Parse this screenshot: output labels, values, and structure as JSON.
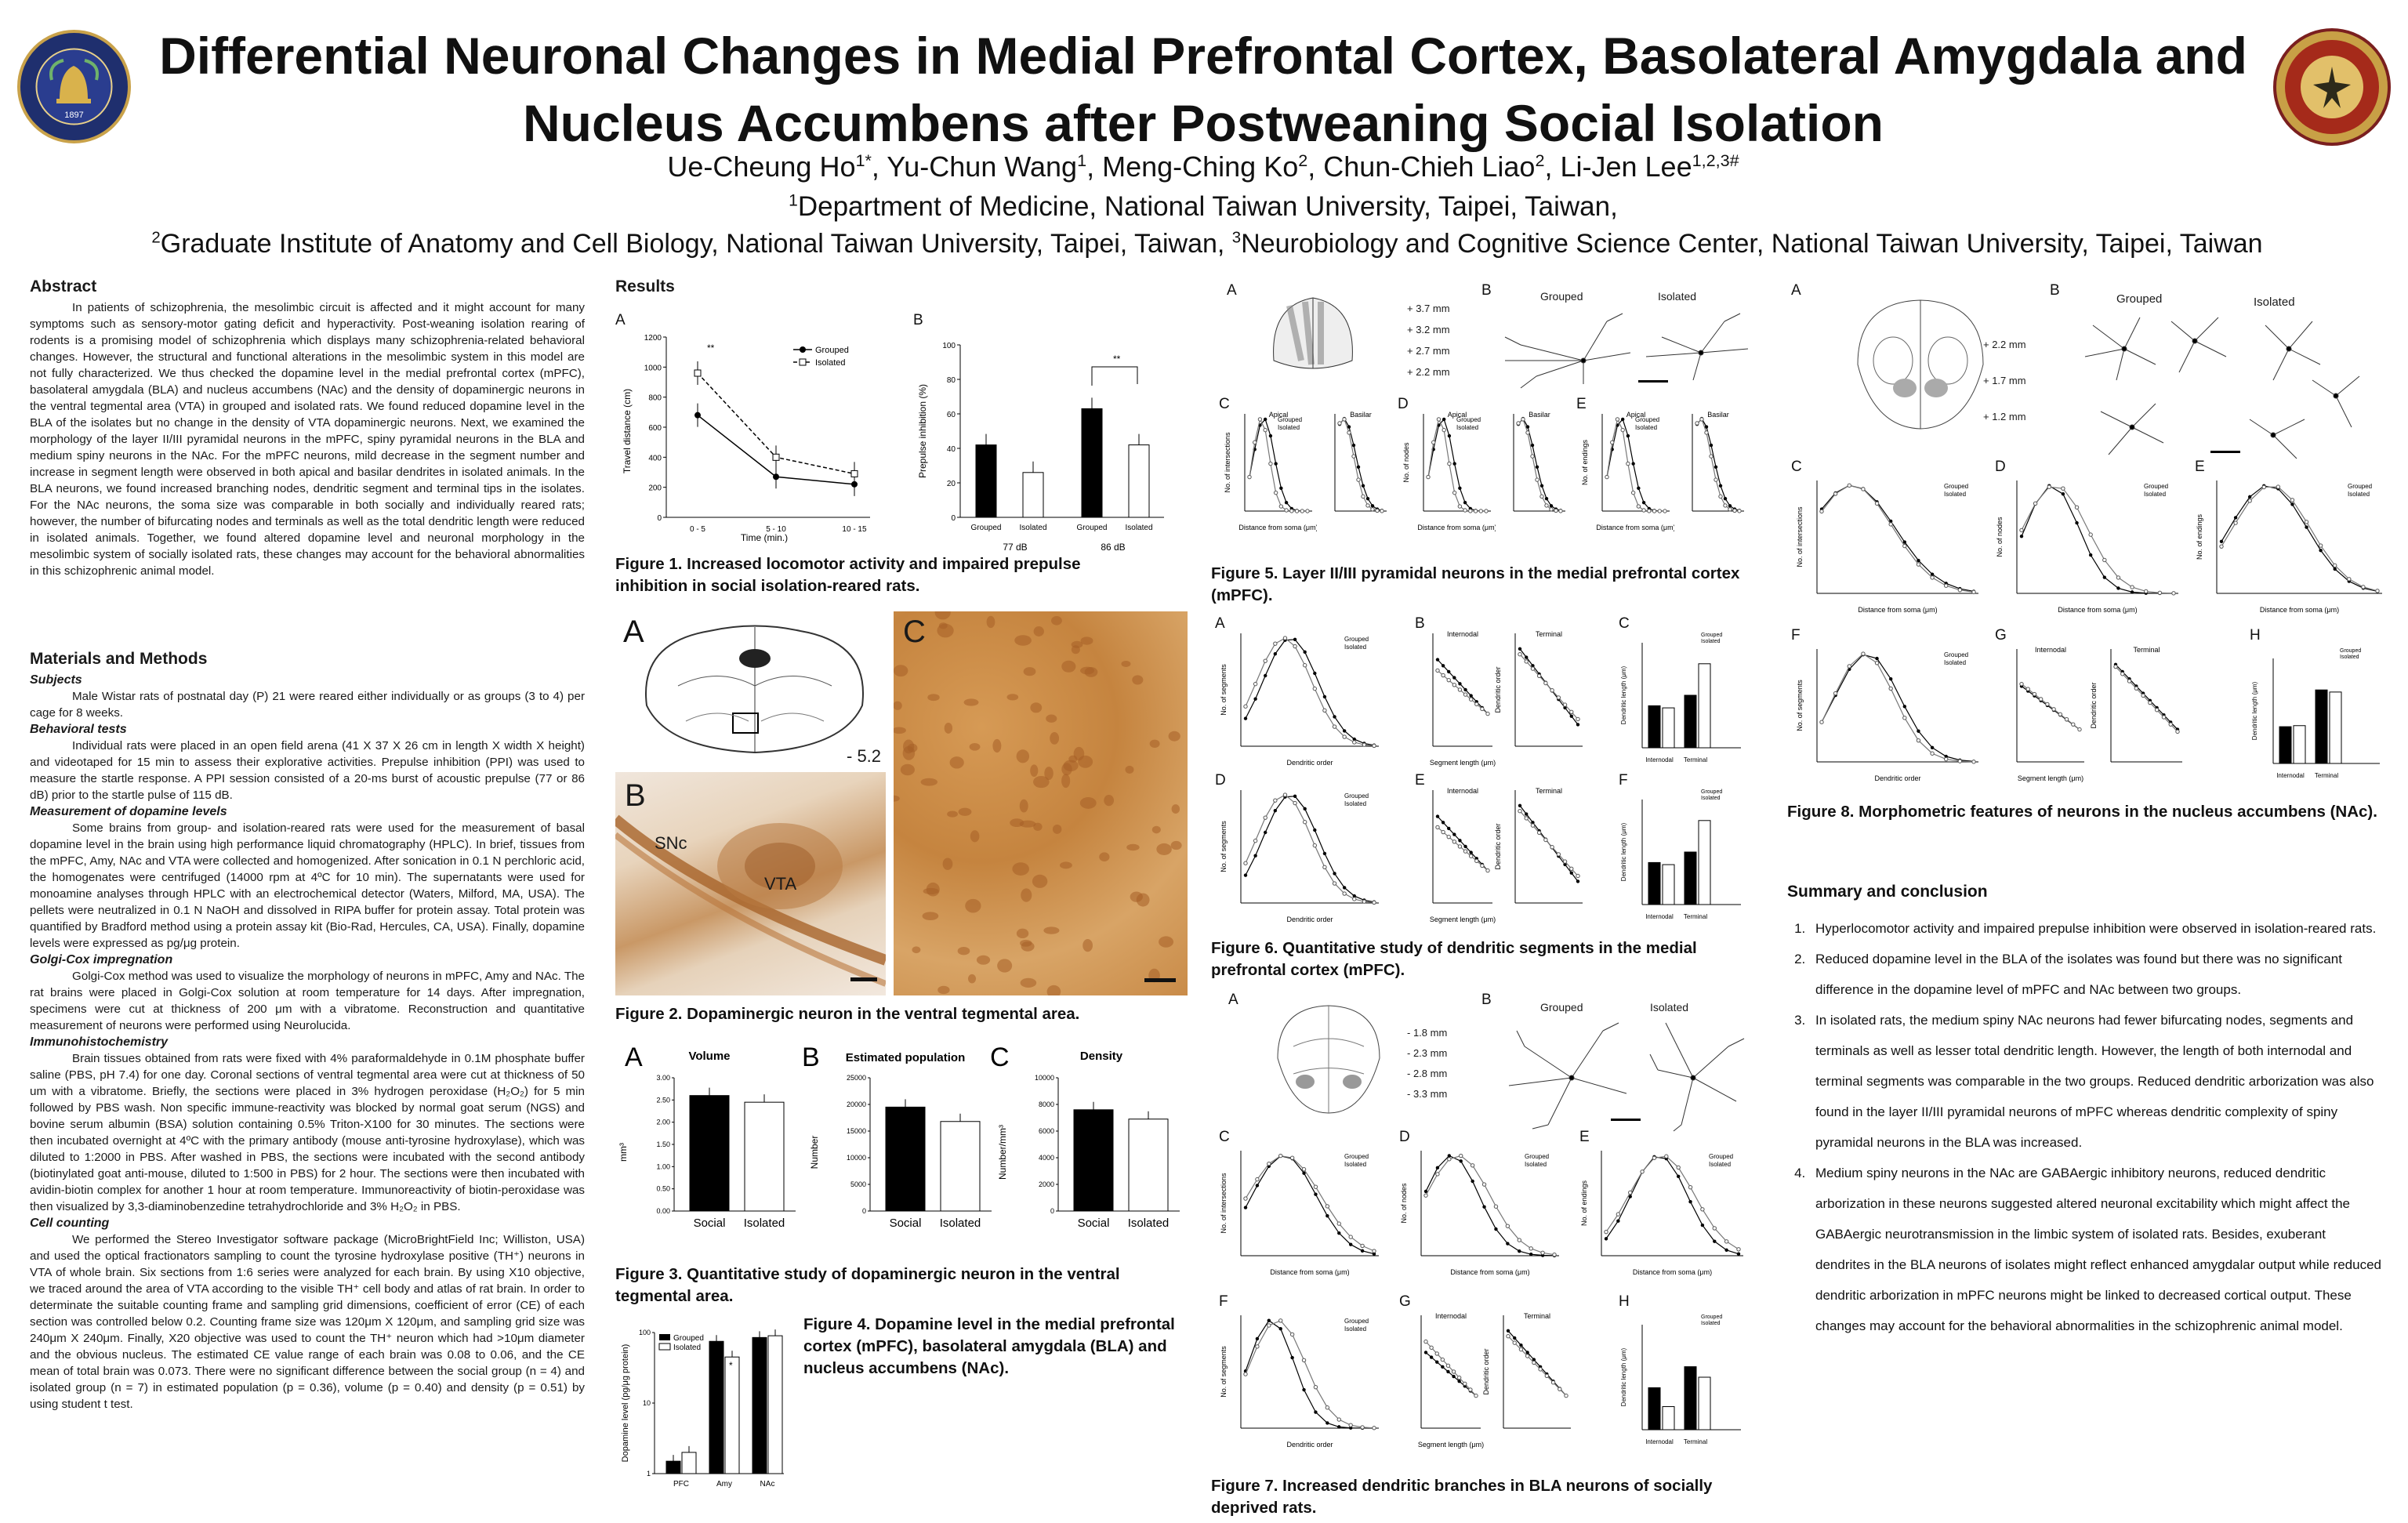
{
  "header": {
    "title_line1": "Differential Neuronal Changes in Medial Prefrontal Cortex, Basolateral Amygdala and",
    "title_line2": "Nucleus Accumbens after Postweaning Social Isolation",
    "authors": [
      {
        "name": "Ue-Cheung Ho",
        "sup": "1*"
      },
      {
        "name": "Yu-Chun Wang",
        "sup": "1"
      },
      {
        "name": "Meng-Ching Ko",
        "sup": "2"
      },
      {
        "name": "Chun-Chieh Liao",
        "sup": "2"
      },
      {
        "name": "Li-Jen Lee",
        "sup": "1,2,3#"
      }
    ],
    "aff1_sup": "1",
    "aff1": "Department of Medicine, National Taiwan University, Taipei, Taiwan,",
    "aff2_sup": "2",
    "aff2": "Graduate Institute of Anatomy and Cell Biology, National Taiwan University, Taipei, Taiwan, ",
    "aff3_sup": "3",
    "aff3": "Neurobiology and Cognitive Science Center, National Taiwan University, Taipei, Taiwan",
    "logo_left_year": "1897",
    "logo_left_text": "NATIONAL TAIWAN UNIVERSITY COLLEGE OF MEDICINE",
    "logo_right_text": "國立臺灣大學"
  },
  "abstract": {
    "heading": "Abstract",
    "text": "In patients of schizophrenia, the mesolimbic circuit is affected and it might account for many symptoms such as sensory-motor gating deficit and hyperactivity. Post-weaning isolation rearing of rodents is a promising model of schizophrenia which displays many schizophrenia-related behavioral changes. However, the structural and functional alterations in the mesolimbic system in this model are not fully characterized. We thus checked the dopamine level in the medial prefrontal cortex (mPFC), basolateral amygdala (BLA) and nucleus accumbens (NAc) and the density of dopaminergic neurons in the ventral tegmental area (VTA) in grouped and isolated rats. We found reduced dopamine level in the BLA of the isolates but no change in the density of VTA dopaminergic neurons. Next, we examined the morphology of the layer II/III pyramidal neurons in the mPFC, spiny pyramidal neurons in the BLA and medium spiny neurons in the NAc. For the mPFC neurons, mild decrease in the segment number and increase in segment length were observed in both apical and basilar dendrites in isolated animals. In the BLA neurons, we found increased branching nodes, dendritic segment and terminal tips in the isolates. For the NAc neurons, the soma size was comparable in both socially and individually reared rats; however, the number of bifurcating nodes and terminals as well as the total dendritic length were reduced in isolated animals. Together, we found altered dopamine level and neuronal morphology in the mesolimbic system of socially isolated rats, these changes may account for the behavioral abnormalities in this schizophrenic animal model."
  },
  "methods": {
    "heading": "Materials and Methods",
    "sections": [
      {
        "title": "Subjects",
        "text": "Male Wistar rats of postnatal day (P) 21 were reared either individually or as groups (3 to 4) per cage for 8 weeks."
      },
      {
        "title": "Behavioral tests",
        "text": "Individual rats were placed in an open field arena (41 X 37 X 26 cm in length X width X height) and videotaped for 15 min to assess their explorative activities. Prepulse inhibition (PPI) was used to measure the startle response. A PPI session consisted of a 20-ms burst of acoustic prepulse (77 or 86 dB) prior to the startle pulse of 115 dB."
      },
      {
        "title": "Measurement of dopamine levels",
        "text": "Some brains from group- and isolation-reared rats were used for the measurement of basal dopamine level in the brain using high performance liquid chromatography (HPLC). In brief, tissues from the mPFC, Amy, NAc and VTA were collected and homogenized. After sonication in 0.1 N perchloric acid, the homogenates were centrifuged (14000 rpm at 4ºC for 10 min). The supernatants were used for monoamine analyses through HPLC with an electrochemical detector (Waters, Milford, MA, USA). The pellets were neutralized in 0.1 N NaOH and dissolved in RIPA buffer for protein assay. Total protein was quantified by Bradford method using a protein assay kit (Bio-Rad, Hercules, CA, USA). Finally, dopamine levels were expressed as pg/μg protein."
      },
      {
        "title": "Golgi-Cox impregnation",
        "text": "Golgi-Cox method was used to visualize the morphology of neurons in mPFC, Amy and NAc. The rat brains were placed in Golgi-Cox solution at room temperature for 14 days. After impregnation, specimens were cut at thickness of 200 μm with a vibratome. Reconstruction and quantitative measurement of neurons were performed using Neurolucida."
      },
      {
        "title": "Immunohistochemistry",
        "text": "Brain tissues obtained from rats were fixed with 4% paraformaldehyde in 0.1M phosphate buffer saline (PBS, pH 7.4) for one day. Coronal sections of ventral tegmental area were cut at thickness of 50 um with a vibratome. Briefly, the sections were placed in 3% hydrogen peroxidase (H₂O₂) for 5 min followed by PBS wash. Non specific immune-reactivity was blocked by normal goat serum (NGS) and bovine serum albumin (BSA) solution containing 0.5% Triton-X100 for 30 minutes. The sections were then incubated overnight at 4ºC with the primary antibody (mouse anti-tyrosine hydroxylase), which was diluted to 1:2000 in PBS. After washed in PBS, the sections were incubated with the second antibody (biotinylated goat anti-mouse, diluted to 1:500 in PBS) for 2 hour. The sections were then incubated with avidin-biotin complex for another 1 hour at room temperature. Immunoreactivity of biotin-peroxidase was then visualized by 3,3-diaminobenzedine tetrahydrochloride and 3% H₂O₂ in PBS."
      },
      {
        "title": "Cell counting",
        "text": "We performed the Stereo Investigator software package (MicroBrightField Inc; Williston, USA) and used the optical fractionators sampling to count the tyrosine hydroxylase positive (TH⁺) neurons in VTA of whole brain. Six sections from 1:6 series were analyzed for each brain. By using X10 objective, we traced around the area of VTA according to the visible TH⁺ cell body and atlas of rat brain. In order to determinate the suitable counting frame and sampling grid dimensions, coefficient of error (CE) of each section was controlled below 0.2. Counting frame size was 120μm X 120μm, and sampling grid size was 240μm X 240μm. Finally, X20 objective was used to count the TH⁺ neuron which had >10μm diameter and the obvious nucleus. The estimated CE value range of each brain was 0.08 to 0.06, and the CE mean of total brain was 0.073. There were no significant difference between the social group (n = 4) and isolated group (n = 7) in estimated population (p = 0.36), volume (p = 0.40) and density (p = 0.51) by using student t test."
      }
    ]
  },
  "results": {
    "heading": "Results",
    "fig1": {
      "caption": "Figure 1. Increased locomotor activity and impaired prepulse inhibition in social isolation-reared rats.",
      "A": {
        "label": "A",
        "ylabel": "Travel distance (cm)",
        "xlabel": "Time (min.)",
        "categories": [
          "0 - 5",
          "5 - 10",
          "10 - 15"
        ],
        "yticks": [
          "0",
          "200",
          "400",
          "600",
          "800",
          "1000",
          "1200"
        ],
        "legend": [
          "Grouped",
          "Isolated"
        ],
        "sig": "**"
      },
      "B": {
        "label": "B",
        "ylabel": "Prepulse inhibition (%)",
        "yticks": [
          "0",
          "20",
          "40",
          "60",
          "80",
          "100"
        ],
        "categories": [
          "Grouped",
          "Isolated",
          "Grouped",
          "Isolated"
        ],
        "groups": [
          "77 dB",
          "86 dB"
        ],
        "sig": "**"
      }
    },
    "fig2": {
      "caption": "Figure 2. Dopaminergic neuron in the ventral tegmental area.",
      "A": "A",
      "B": "B",
      "C": "C",
      "bregma": "- 5.2",
      "snc": "SNc",
      "vta": "VTA"
    },
    "fig3": {
      "caption": "Figure 3. Quantitative study of dopaminergic neuron in the ventral tegmental area.",
      "A": {
        "label": "A",
        "title": "Volume",
        "ylabel": "mm³",
        "yticks": [
          "0.00",
          "0.50",
          "1.00",
          "1.50",
          "2.00",
          "2.50",
          "3.00"
        ],
        "categories": [
          "Social",
          "Isolated"
        ]
      },
      "B": {
        "label": "B",
        "title": "Estimated population",
        "ylabel": "Number",
        "yticks": [
          "0",
          "5000",
          "10000",
          "15000",
          "20000",
          "25000"
        ],
        "categories": [
          "Social",
          "Isolated"
        ]
      },
      "C": {
        "label": "C",
        "title": "Density",
        "ylabel": "Number/mm³",
        "yticks": [
          "0",
          "2000",
          "4000",
          "6000",
          "8000",
          "10000"
        ],
        "categories": [
          "Social",
          "Isolated"
        ]
      }
    },
    "fig4": {
      "caption": "Figure 4. Dopamine level in the medial prefrontal cortex (mPFC), basolateral amygdala (BLA) and nucleus accumbens (NAc).",
      "ylabel": "Dopamine level (pg/μg protein)",
      "yticks": [
        "1",
        "10",
        "100"
      ],
      "categories": [
        "PFC",
        "Amy",
        "NAc"
      ],
      "legend": [
        "Grouped",
        "Isolated"
      ],
      "sig": "*"
    },
    "fig5": {
      "caption": "Figure 5. Layer II/III pyramidal neurons in the medial prefrontal cortex (mPFC).",
      "levels": [
        "+ 3.7 mm",
        "+ 3.2 mm",
        "+ 2.7 mm",
        "+ 2.2 mm"
      ],
      "labels": [
        "A",
        "B",
        "C",
        "D",
        "E"
      ],
      "grouped": "Grouped",
      "isolated": "Isolated",
      "panels": [
        {
          "label": "C",
          "ylabel": "No. of intersections",
          "xlabel": "Distance from soma (μm)"
        },
        {
          "label": "D",
          "ylabel": "No. of nodes",
          "xlabel": "Distance from soma (μm)"
        },
        {
          "label": "E",
          "ylabel": "No. of endings",
          "xlabel": "Distance from soma (μm)"
        }
      ],
      "apical": "Apical",
      "basilar": "Basilar"
    },
    "fig6": {
      "caption": "Figure 6. Quantitative study of dendritic segments in the medial prefrontal cortex (mPFC).",
      "rowA": {
        "a": "A",
        "b": "B",
        "c": "C"
      },
      "rowD": {
        "a": "D",
        "b": "E",
        "c": "F"
      },
      "ylab_seg": "No. of segments",
      "xlab_order": "Dendritic order",
      "xlab_len": "Segment length (μm)",
      "ylab_len": "Dendritic length (μm)",
      "ylab_order": "Dendritic order",
      "internodal": "Internodal",
      "terminal": "Terminal"
    },
    "fig7": {
      "caption": "Figure 7. Increased dendritic branches in BLA neurons of socially deprived rats.",
      "levels": [
        "- 1.8 mm",
        "- 2.3 mm",
        "- 2.8 mm",
        "- 3.3 mm"
      ],
      "labels": [
        "A",
        "B",
        "C",
        "D",
        "E",
        "F",
        "G",
        "H"
      ]
    },
    "fig8": {
      "caption": "Figure 8. Morphometric features of neurons in the nucleus accumbens (NAc).",
      "levels": [
        "+ 2.2 mm",
        "+ 1.7 mm",
        "+ 1.2 mm"
      ],
      "labels": [
        "A",
        "B",
        "C",
        "D",
        "E",
        "F",
        "G",
        "H"
      ]
    }
  },
  "summary": {
    "heading": "Summary and conclusion",
    "items": [
      "Hyperlocomotor activity and impaired prepulse inhibition were observed in isolation-reared rats.",
      "Reduced dopamine level in the BLA of the isolates was found but there was no significant difference in the dopamine level of mPFC and NAc between two groups.",
      "In isolated rats, the medium spiny NAc neurons had fewer bifurcating nodes, segments and terminals as well as lesser total dendritic length. However, the length of both internodal and terminal segments was comparable in the two groups. Reduced dendritic arborization was also found in the layer II/III pyramidal neurons of mPFC whereas dendritic complexity of spiny pyramidal neurons in the BLA was increased.",
      "Medium spiny neurons in the NAc are GABAergic inhibitory neurons, reduced dendritic arborization in these neurons suggested altered neuronal excitability which might affect the GABAergic neurotransmission in the limbic system of isolated rats. Besides, exuberant dendrites in the BLA neurons of isolates might reflect enhanced amygdalar output while reduced dendritic arborization in mPFC neurons might be linked to decreased cortical output. These changes may account for the behavioral abnormalities in the schizophrenic animal model."
    ]
  },
  "chart_data": [
    {
      "type": "line",
      "id": "fig1A",
      "categories": [
        "0 - 5",
        "5 - 10",
        "10 - 15"
      ],
      "ylim": [
        0,
        1200
      ],
      "series": [
        {
          "name": "Grouped",
          "values": [
            680,
            270,
            220
          ]
        },
        {
          "name": "Isolated",
          "values": [
            960,
            400,
            290
          ]
        }
      ]
    },
    {
      "type": "bar",
      "id": "fig1B",
      "categories": [
        "Grouped",
        "Isolated",
        "Grouped",
        "Isolated"
      ],
      "ylim": [
        0,
        100
      ],
      "values": [
        42,
        26,
        63,
        42
      ]
    },
    {
      "type": "bar",
      "id": "fig3A",
      "categories": [
        "Social",
        "Isolated"
      ],
      "ylim": [
        0,
        3
      ],
      "values": [
        2.6,
        2.45
      ]
    },
    {
      "type": "bar",
      "id": "fig3B",
      "categories": [
        "Social",
        "Isolated"
      ],
      "ylim": [
        0,
        25000
      ],
      "values": [
        19500,
        16800
      ]
    },
    {
      "type": "bar",
      "id": "fig3C",
      "categories": [
        "Social",
        "Isolated"
      ],
      "ylim": [
        0,
        10000
      ],
      "values": [
        7600,
        6900
      ]
    },
    {
      "type": "bar",
      "id": "fig4",
      "scale": "log",
      "categories": [
        "PFC",
        "Amy",
        "NAc"
      ],
      "ylim": [
        1,
        100
      ],
      "series": [
        {
          "name": "Grouped",
          "values": [
            1.5,
            75,
            85
          ]
        },
        {
          "name": "Isolated",
          "values": [
            2.0,
            45,
            90
          ]
        }
      ]
    }
  ]
}
